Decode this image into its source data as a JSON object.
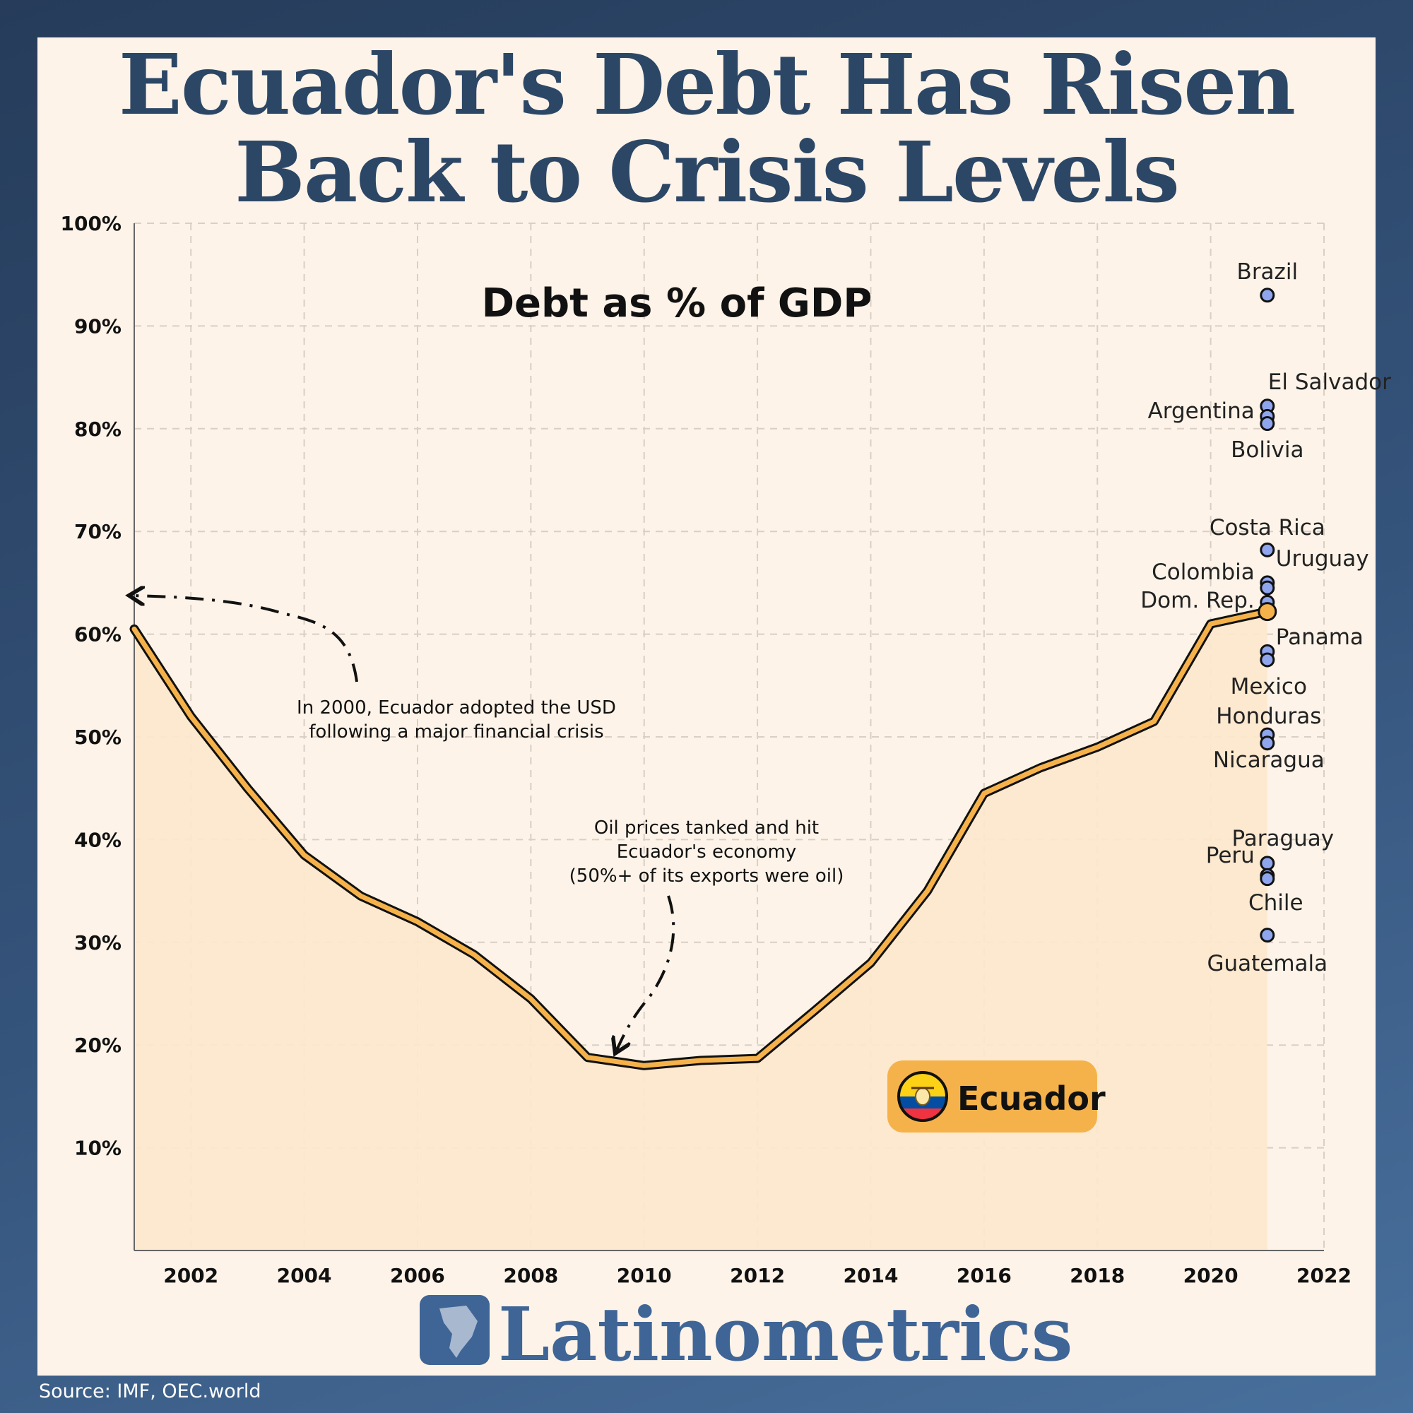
{
  "title_lines": [
    "Ecuador's Debt Has Risen",
    "Back to Crisis Levels"
  ],
  "source": "Source: IMF, OEC.world",
  "brand": "Latinometrics",
  "colors": {
    "line": "#f6b24a",
    "fill": "#fde8cc",
    "point": "#8fa6ef",
    "title": "#2c4766",
    "badge": "#f6b24a"
  },
  "chart_data": {
    "type": "line",
    "subtitle": "Debt as % of GDP",
    "xlim": [
      2001,
      2022
    ],
    "ylim": [
      0,
      100
    ],
    "x_ticks": [
      2002,
      2004,
      2006,
      2008,
      2010,
      2012,
      2014,
      2016,
      2018,
      2020,
      2022
    ],
    "y_ticks": [
      10,
      20,
      30,
      40,
      50,
      60,
      70,
      80,
      90,
      100
    ],
    "y_tick_labels": [
      "10%",
      "20%",
      "30%",
      "40%",
      "50%",
      "60%",
      "70%",
      "80%",
      "90%",
      "100%"
    ],
    "x_tick_labels": [
      "2002",
      "2004",
      "2006",
      "2008",
      "2010",
      "2012",
      "2014",
      "2016",
      "2018",
      "2020",
      "2022"
    ],
    "grid": true,
    "series": [
      {
        "name": "Ecuador",
        "x": [
          2001,
          2002,
          2003,
          2004,
          2005,
          2006,
          2007,
          2008,
          2009,
          2010,
          2011,
          2012,
          2013,
          2014,
          2015,
          2016,
          2017,
          2018,
          2019,
          2020,
          2021
        ],
        "y": [
          60.5,
          52,
          45,
          38.5,
          34.5,
          32,
          28.8,
          24.5,
          18.8,
          18,
          18.5,
          18.7,
          23.3,
          28,
          35,
          44.5,
          47,
          49,
          51.5,
          61,
          62.2
        ]
      }
    ],
    "comparison_points": [
      {
        "name": "Brazil",
        "x": 2021,
        "y": 93
      },
      {
        "name": "El Salvador",
        "x": 2021,
        "y": 82.2
      },
      {
        "name": "Argentina",
        "x": 2021,
        "y": 81.2
      },
      {
        "name": "Bolivia",
        "x": 2021,
        "y": 80.5
      },
      {
        "name": "Costa Rica",
        "x": 2021,
        "y": 68.2
      },
      {
        "name": "Uruguay",
        "x": 2021,
        "y": 65
      },
      {
        "name": "Colombia",
        "x": 2021,
        "y": 64.5
      },
      {
        "name": "Dom. Rep.",
        "x": 2021,
        "y": 63.1
      },
      {
        "name": "Panama",
        "x": 2021,
        "y": 58.3
      },
      {
        "name": "Mexico",
        "x": 2021,
        "y": 57.5
      },
      {
        "name": "Honduras",
        "x": 2021,
        "y": 50.2
      },
      {
        "name": "Nicaragua",
        "x": 2021,
        "y": 49.4
      },
      {
        "name": "Paraguay",
        "x": 2021,
        "y": 37.7
      },
      {
        "name": "Peru",
        "x": 2021,
        "y": 36.5
      },
      {
        "name": "Chile",
        "x": 2021,
        "y": 36.2
      },
      {
        "name": "Guatemala",
        "x": 2021,
        "y": 30.7
      }
    ],
    "annotations": [
      {
        "lines": [
          "In 2000, Ecuador adopted the USD",
          "following a major financial crisis"
        ]
      },
      {
        "lines": [
          "Oil prices tanked and hit",
          "Ecuador's economy",
          "(50%+ of its exports were oil)"
        ]
      }
    ],
    "legend": {
      "label": "Ecuador",
      "position": "bottom-right"
    }
  }
}
